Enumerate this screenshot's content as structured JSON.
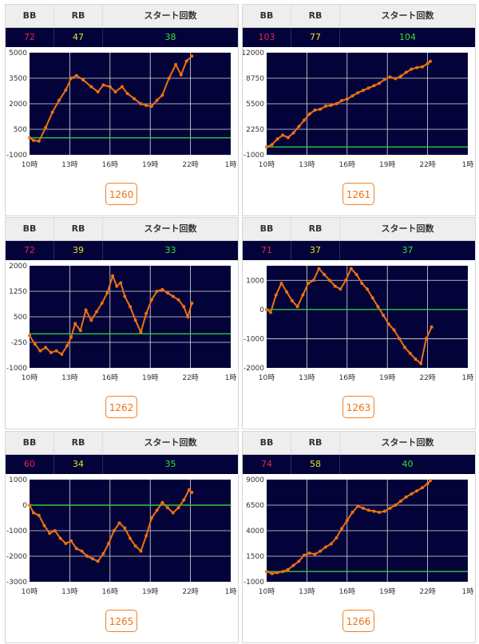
{
  "headers": {
    "bb": "BB",
    "rb": "RB",
    "start": "スタート回数"
  },
  "x_ticks": [
    "10時",
    "13時",
    "16時",
    "19時",
    "22時",
    "1時"
  ],
  "colors": {
    "plot_bg": "#03033a",
    "line": "#f07010",
    "baseline": "#2ecc40",
    "grid": "#dddddd"
  },
  "chart_data": [
    {
      "type": "line",
      "machine": "1260",
      "bb": "72",
      "rb": "47",
      "start": "38",
      "yticks": [
        5000,
        3500,
        2000,
        500,
        -1000
      ],
      "ylim": [
        -1000,
        5000
      ],
      "xlim": [
        10,
        25
      ],
      "x": [
        10,
        10.3,
        10.7,
        11.2,
        11.7,
        12.2,
        12.7,
        13.1,
        13.5,
        14.0,
        14.6,
        15.1,
        15.5,
        16.0,
        16.4,
        16.9,
        17.3,
        17.8,
        18.3,
        18.7,
        19.1,
        19.5,
        19.9,
        20.4,
        20.9,
        21.3,
        21.7,
        22.1
      ],
      "y": [
        0,
        -150,
        -200,
        600,
        1500,
        2200,
        2800,
        3500,
        3650,
        3400,
        3000,
        2700,
        3100,
        3000,
        2700,
        3000,
        2600,
        2300,
        2000,
        1900,
        1850,
        2200,
        2500,
        3500,
        4300,
        3700,
        4500,
        4800
      ]
    },
    {
      "type": "line",
      "machine": "1261",
      "bb": "103",
      "rb": "77",
      "start": "104",
      "yticks": [
        12000,
        8750,
        5500,
        2250,
        -1000
      ],
      "ylim": [
        -1000,
        12000
      ],
      "xlim": [
        10,
        25
      ],
      "x": [
        10,
        10.4,
        10.8,
        11.2,
        11.6,
        12.0,
        12.4,
        12.8,
        13.2,
        13.6,
        14.0,
        14.4,
        14.8,
        15.2,
        15.6,
        16.0,
        16.4,
        16.8,
        17.2,
        17.6,
        18.0,
        18.4,
        18.8,
        19.2,
        19.6,
        20.0,
        20.4,
        20.8,
        21.2,
        21.6,
        22.0,
        22.2
      ],
      "y": [
        0,
        300,
        1000,
        1500,
        1200,
        1800,
        2600,
        3400,
        4200,
        4700,
        4800,
        5200,
        5300,
        5500,
        5900,
        6100,
        6500,
        6900,
        7200,
        7500,
        7800,
        8100,
        8600,
        8900,
        8700,
        9000,
        9500,
        9900,
        10100,
        10200,
        10600,
        10900
      ]
    },
    {
      "type": "line",
      "machine": "1262",
      "bb": "72",
      "rb": "39",
      "start": "33",
      "yticks": [
        2000,
        1250,
        500,
        -250,
        -1000
      ],
      "ylim": [
        -1000,
        2000
      ],
      "xlim": [
        10,
        25
      ],
      "x": [
        10,
        10.4,
        10.8,
        11.2,
        11.6,
        12.0,
        12.4,
        12.8,
        13.1,
        13.4,
        13.8,
        14.2,
        14.6,
        15.0,
        15.4,
        15.8,
        16.2,
        16.5,
        16.8,
        17.1,
        17.5,
        17.9,
        18.3,
        18.7,
        19.1,
        19.5,
        19.9,
        20.3,
        20.7,
        21.1,
        21.5,
        21.8,
        22.1
      ],
      "y": [
        -50,
        -300,
        -500,
        -400,
        -550,
        -500,
        -600,
        -350,
        -100,
        300,
        100,
        700,
        400,
        650,
        900,
        1200,
        1700,
        1400,
        1500,
        1100,
        800,
        400,
        50,
        600,
        1000,
        1250,
        1300,
        1200,
        1100,
        1000,
        800,
        500,
        900
      ]
    },
    {
      "type": "line",
      "machine": "1263",
      "bb": "71",
      "rb": "37",
      "start": "37",
      "yticks": [
        1000,
        0,
        -1000,
        -2000
      ],
      "ylim": [
        -2000,
        1500
      ],
      "xlim": [
        10,
        25
      ],
      "x": [
        10,
        10.3,
        10.7,
        11.1,
        11.5,
        11.9,
        12.3,
        12.7,
        13.1,
        13.5,
        13.9,
        14.3,
        14.7,
        15.1,
        15.5,
        15.9,
        16.3,
        16.7,
        17.1,
        17.5,
        17.9,
        18.3,
        18.7,
        19.1,
        19.5,
        19.9,
        20.3,
        20.7,
        21.1,
        21.5,
        21.9,
        22.3
      ],
      "y": [
        0,
        -100,
        500,
        900,
        600,
        300,
        100,
        500,
        900,
        1000,
        1400,
        1200,
        1000,
        800,
        700,
        1000,
        1400,
        1200,
        900,
        700,
        400,
        100,
        -200,
        -500,
        -700,
        -1000,
        -1300,
        -1500,
        -1700,
        -1850,
        -1000,
        -600
      ]
    },
    {
      "type": "line",
      "machine": "1265",
      "bb": "60",
      "rb": "34",
      "start": "35",
      "yticks": [
        1000,
        0,
        -1000,
        -2000,
        -3000
      ],
      "ylim": [
        -3000,
        1000
      ],
      "xlim": [
        10,
        25
      ],
      "x": [
        10,
        10.3,
        10.7,
        11.1,
        11.5,
        11.9,
        12.3,
        12.7,
        13.1,
        13.5,
        13.9,
        14.3,
        14.7,
        15.1,
        15.5,
        15.9,
        16.3,
        16.7,
        17.1,
        17.5,
        17.9,
        18.3,
        18.7,
        19.1,
        19.5,
        19.9,
        20.3,
        20.7,
        21.1,
        21.5,
        21.9,
        22.1
      ],
      "y": [
        0,
        -300,
        -400,
        -800,
        -1100,
        -1000,
        -1300,
        -1500,
        -1400,
        -1700,
        -1800,
        -2000,
        -2100,
        -2200,
        -1900,
        -1500,
        -1000,
        -700,
        -900,
        -1300,
        -1600,
        -1800,
        -1200,
        -500,
        -200,
        100,
        -100,
        -300,
        -100,
        200,
        600,
        500
      ]
    },
    {
      "type": "line",
      "machine": "1266",
      "bb": "74",
      "rb": "58",
      "start": "40",
      "yticks": [
        9000,
        6500,
        4000,
        1500,
        -1000
      ],
      "ylim": [
        -1000,
        9000
      ],
      "xlim": [
        10,
        25
      ],
      "x": [
        10,
        10.4,
        10.8,
        11.2,
        11.6,
        12.0,
        12.4,
        12.8,
        13.2,
        13.6,
        14.0,
        14.4,
        14.8,
        15.2,
        15.6,
        16.0,
        16.4,
        16.8,
        17.2,
        17.6,
        18.0,
        18.4,
        18.8,
        19.2,
        19.6,
        20.0,
        20.4,
        20.8,
        21.2,
        21.6,
        22.0,
        22.2
      ],
      "y": [
        0,
        -200,
        -100,
        0,
        200,
        600,
        1000,
        1600,
        1800,
        1700,
        2000,
        2400,
        2700,
        3300,
        4200,
        5000,
        5800,
        6400,
        6200,
        6000,
        5900,
        5800,
        5900,
        6200,
        6500,
        6900,
        7300,
        7600,
        7900,
        8200,
        8600,
        8900
      ]
    }
  ]
}
